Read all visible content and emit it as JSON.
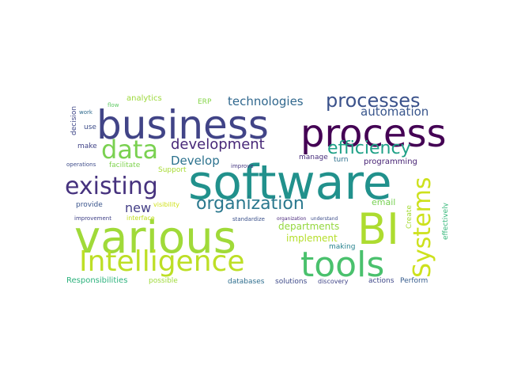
{
  "word_cloud": {
    "words": [
      {
        "text": "software",
        "color": "#21918c"
      },
      {
        "text": "various",
        "color": "#a0da39"
      },
      {
        "text": "business",
        "color": "#414487"
      },
      {
        "text": "process",
        "color": "#440154"
      },
      {
        "text": "BI",
        "color": "#addc30"
      },
      {
        "text": "Intelligence",
        "color": "#bddf26"
      },
      {
        "text": "tools",
        "color": "#4ac16d"
      },
      {
        "text": "data",
        "color": "#7ad151"
      },
      {
        "text": "existing",
        "color": "#46327e"
      },
      {
        "text": "Systems",
        "color": "#cde11d"
      },
      {
        "text": "processes",
        "color": "#3b528b"
      },
      {
        "text": "efficiency",
        "color": "#1fa187"
      },
      {
        "text": "organization",
        "color": "#2a788e"
      },
      {
        "text": "development",
        "color": "#482878"
      },
      {
        "text": "technologies",
        "color": "#31688e"
      },
      {
        "text": "automation",
        "color": "#39568c"
      },
      {
        "text": "new",
        "color": "#433e85"
      },
      {
        "text": "Develop",
        "color": "#2c728e"
      },
      {
        "text": "departments",
        "color": "#95d840"
      },
      {
        "text": "implement",
        "color": "#b5de2b"
      },
      {
        "text": "email",
        "color": "#77d153"
      },
      {
        "text": "programming",
        "color": "#482475"
      },
      {
        "text": "manage",
        "color": "#472d7b"
      },
      {
        "text": "turn",
        "color": "#2d708e"
      },
      {
        "text": "making",
        "color": "#26828e"
      },
      {
        "text": "solutions",
        "color": "#3e4a89"
      },
      {
        "text": "discovery",
        "color": "#404588"
      },
      {
        "text": "actions",
        "color": "#3f4889"
      },
      {
        "text": "Perform",
        "color": "#365c8d"
      },
      {
        "text": "databases",
        "color": "#2e6e8e"
      },
      {
        "text": "Responsibilities",
        "color": "#2db27d"
      },
      {
        "text": "possible",
        "color": "#9fda3a"
      },
      {
        "text": "interface",
        "color": "#c2df23"
      },
      {
        "text": "visibility",
        "color": "#d0e11c"
      },
      {
        "text": "provide",
        "color": "#3a548c"
      },
      {
        "text": "improvement",
        "color": "#414287"
      },
      {
        "text": "standardize",
        "color": "#3b518b"
      },
      {
        "text": "organization",
        "color": "#4b2a7d"
      },
      {
        "text": "understand",
        "color": "#3d4e8a"
      },
      {
        "text": "Create",
        "color": "#a5db36"
      },
      {
        "text": "effectively",
        "color": "#35b779"
      },
      {
        "text": "Support",
        "color": "#a8db34"
      },
      {
        "text": "facilitate",
        "color": "#7fd34e"
      },
      {
        "text": "operations",
        "color": "#3e4c8a"
      },
      {
        "text": "improve",
        "color": "#453781"
      },
      {
        "text": "ERP",
        "color": "#86d549"
      },
      {
        "text": "analytics",
        "color": "#9dd93b"
      },
      {
        "text": "flow",
        "color": "#5ec962"
      },
      {
        "text": "work",
        "color": "#2f6b8e"
      },
      {
        "text": "decision",
        "color": "#3f4788"
      },
      {
        "text": "use",
        "color": "#3d4d8a"
      },
      {
        "text": "make",
        "color": "#404387"
      }
    ]
  }
}
